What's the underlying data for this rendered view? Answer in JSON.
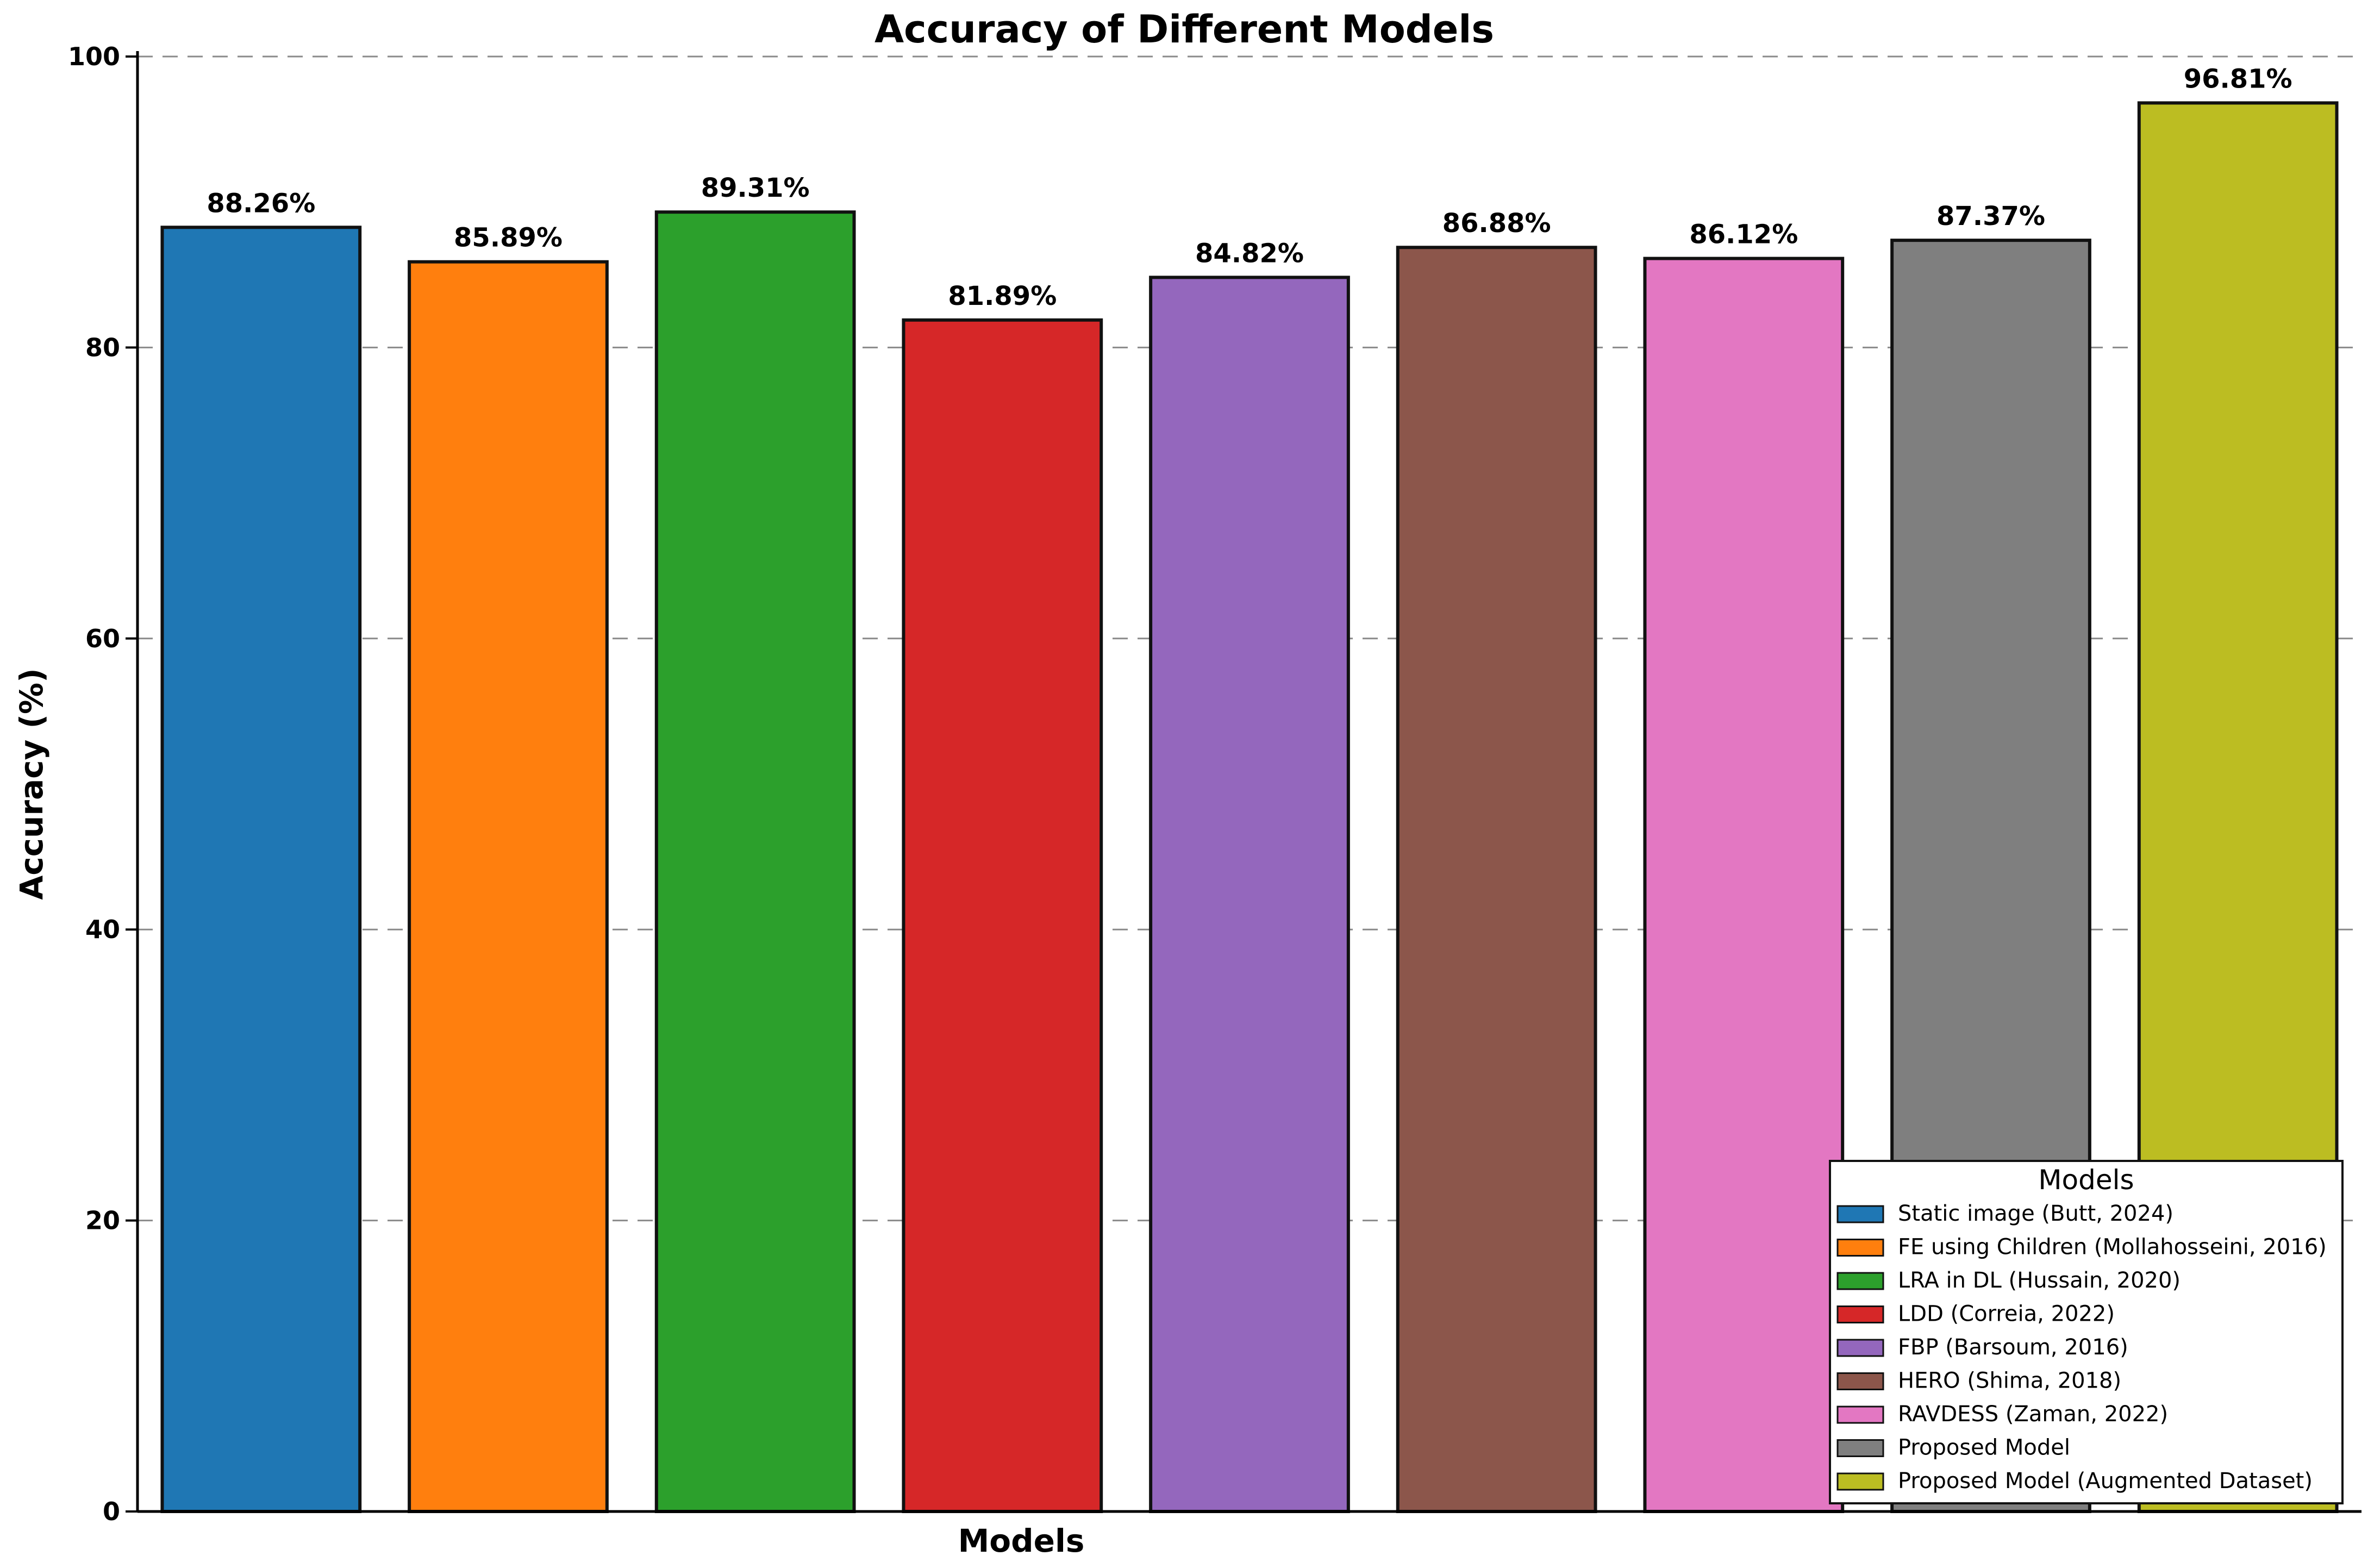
{
  "chart_data": {
    "type": "bar",
    "title": "Accuracy of Different Models",
    "xlabel": "Models",
    "ylabel": "Accuracy (%)",
    "ylim": [
      0,
      100
    ],
    "yticks": [
      0,
      20,
      40,
      60,
      80,
      100
    ],
    "grid": "horizontal dashed",
    "legend_title": "Models",
    "legend_position": "lower-right",
    "categories": [
      "Static image (Butt, 2024)",
      "FE using Children (Mollahosseini, 2016)",
      "LRA in DL (Hussain, 2020)",
      "LDD (Correia, 2022)",
      "FBP (Barsoum, 2016)",
      "HERO (Shima, 2018)",
      "RAVDESS (Zaman, 2022)",
      "Proposed Model",
      "Proposed Model (Augmented Dataset)"
    ],
    "values": [
      88.26,
      85.89,
      89.31,
      81.89,
      84.82,
      86.88,
      86.12,
      87.37,
      96.81
    ],
    "value_labels": [
      "88.26%",
      "85.89%",
      "89.31%",
      "81.89%",
      "84.82%",
      "86.88%",
      "86.12%",
      "87.37%",
      "96.81%"
    ],
    "colors": [
      "#1f77b4",
      "#ff7f0e",
      "#2ca02c",
      "#d62728",
      "#9467bd",
      "#8c564b",
      "#e377c2",
      "#7f7f7f",
      "#bcbd22"
    ]
  }
}
